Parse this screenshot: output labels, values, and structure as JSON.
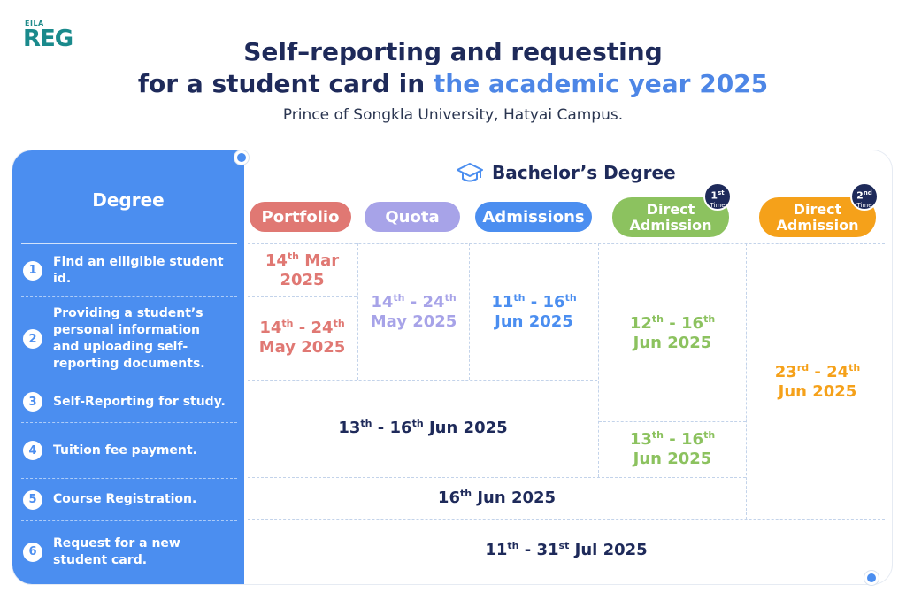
{
  "logo": {
    "small": "EILA",
    "big": "REG"
  },
  "title": {
    "line1": "Self–reporting and requesting",
    "line2_dark": "for a student card in",
    "line2_highlight": "the academic year 2025",
    "subtitle": "Prince of Songkla University, Hatyai Campus."
  },
  "table": {
    "degree_header": "Degree",
    "bachelor_header": "Bachelor’s Degree",
    "channels": {
      "portfolio": "Portfolio",
      "quota": "Quota",
      "admissions": "Admissions",
      "direct1_line1": "Direct",
      "direct1_line2": "Admission",
      "direct1_badge_num": "1",
      "direct1_badge_sup": "st",
      "direct1_badge_time": "Time",
      "direct2_line1": "Direct",
      "direct2_line2": "Admission",
      "direct2_badge_num": "2",
      "direct2_badge_sup": "nd",
      "direct2_badge_time": "Time"
    },
    "steps": [
      {
        "num": "1",
        "label": "Find an eiligible student id."
      },
      {
        "num": "2",
        "label": "Providing a student’s personal information and uploading self-reporting documents."
      },
      {
        "num": "3",
        "label": "Self-Reporting for study."
      },
      {
        "num": "4",
        "label": "Tuition fee payment."
      },
      {
        "num": "5",
        "label": "Course Registration."
      },
      {
        "num": "6",
        "label": "Request for a new student card."
      }
    ],
    "dates": {
      "portfolio_step1": {
        "d": "14",
        "sup": "th",
        "rest": "Mar",
        "year": "2025"
      },
      "portfolio_step2": {
        "d1": "14",
        "s1": "th",
        "d2": "24",
        "s2": "th",
        "line2": "May 2025"
      },
      "quota_step12": {
        "d1": "14",
        "s1": "th",
        "d2": "24",
        "s2": "th",
        "line2": "May 2025"
      },
      "admissions_step12": {
        "d1": "11",
        "s1": "th",
        "d2": "16",
        "s2": "th",
        "line2": "Jun 2025"
      },
      "direct1_step123": {
        "d1": "12",
        "s1": "th",
        "d2": "16",
        "s2": "th",
        "line2": "Jun 2025"
      },
      "direct1_step4": {
        "d1": "13",
        "s1": "th",
        "d2": "16",
        "s2": "th",
        "line2": "Jun 2025"
      },
      "direct2_step12345": {
        "d1": "23",
        "s1": "rd",
        "d2": "24",
        "s2": "th",
        "line2": "Jun 2025"
      },
      "common_step34": {
        "d1": "13",
        "s1": "th",
        "d2": "16",
        "s2": "th",
        "rest": "Jun 2025"
      },
      "common_step5": {
        "d": "16",
        "sup": "th",
        "rest": "Jun 2025"
      },
      "common_step6": {
        "d1": "11",
        "s1": "th",
        "d2": "31",
        "s2": "st",
        "rest": "Jul 2025"
      }
    }
  },
  "colors": {
    "blue": "#4b8ef0",
    "navy": "#1e2a5a",
    "portfolio": "#e07873",
    "quota": "#a7a3e8",
    "admissions": "#4b8ef0",
    "direct1": "#8cc25f",
    "direct2": "#f5a11a"
  }
}
